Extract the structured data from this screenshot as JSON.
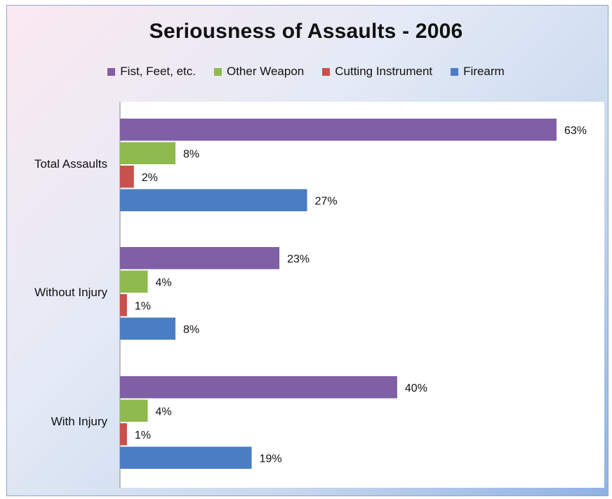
{
  "chart_data": {
    "type": "bar",
    "orientation": "horizontal",
    "title": "Seriousness of Assaults - 2006",
    "categories": [
      "Total Assaults",
      "Without Injury",
      "With Injury"
    ],
    "series": [
      {
        "name": "Fist, Feet, etc.",
        "color": "#7f5fa5",
        "values": [
          63,
          23,
          40
        ],
        "labels": [
          "63%",
          "23%",
          "40%"
        ]
      },
      {
        "name": "Other Weapon",
        "color": "#8fba4d",
        "values": [
          8,
          4,
          4
        ],
        "labels": [
          "8%",
          "4%",
          "4%"
        ]
      },
      {
        "name": "Cutting Instrument",
        "color": "#c9504c",
        "values": [
          2,
          1,
          1
        ],
        "labels": [
          "2%",
          "1%",
          "1%"
        ]
      },
      {
        "name": "Firearm",
        "color": "#4a7ec4",
        "values": [
          27,
          8,
          19
        ],
        "labels": [
          "27%",
          "8%",
          "19%"
        ]
      }
    ],
    "xlim": [
      0,
      65
    ],
    "unit": "%",
    "legend_position": "top",
    "grid": false
  }
}
